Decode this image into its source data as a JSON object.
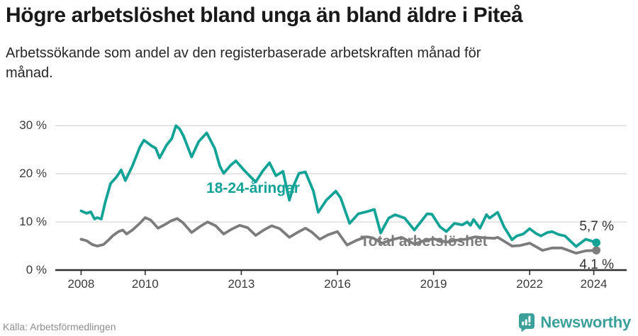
{
  "header": {
    "title": "Högre arbetslöshet bland unga än bland äldre i Piteå",
    "subtitle_line1": "Arbetssökande som andel av den registerbaserade arbetskraften månad för",
    "subtitle_line2": "månad."
  },
  "chart_data": {
    "type": "line",
    "title": "Högre arbetslöshet bland unga än bland äldre i Piteå",
    "xlabel": "",
    "ylabel": "",
    "unit": "%",
    "grid": "horizontal",
    "legend_position": "inline-labels",
    "ylim": [
      0,
      32
    ],
    "xlim": [
      2007.95,
      2024.2
    ],
    "y_ticks": [
      {
        "value": 0,
        "label": "0 %"
      },
      {
        "value": 10,
        "label": "10 %"
      },
      {
        "value": 20,
        "label": "20 %"
      },
      {
        "value": 30,
        "label": "30 %"
      }
    ],
    "x_ticks": [
      {
        "year": 2008,
        "label": "2008"
      },
      {
        "year": 2010,
        "label": "2010"
      },
      {
        "year": 2013,
        "label": "2013"
      },
      {
        "year": 2016,
        "label": "2016"
      },
      {
        "year": 2019,
        "label": "2019"
      },
      {
        "year": 2022,
        "label": "2022"
      },
      {
        "year": 2024,
        "label": "2024"
      }
    ],
    "series": [
      {
        "name": "18-24-åringar",
        "color": "#12a296",
        "end_label": "5,7 %",
        "end_value": 5.7,
        "points": [
          [
            2008.0,
            12.3
          ],
          [
            2008.17,
            11.8
          ],
          [
            2008.3,
            12.1
          ],
          [
            2008.42,
            10.6
          ],
          [
            2008.5,
            10.9
          ],
          [
            2008.63,
            10.6
          ],
          [
            2008.75,
            14.0
          ],
          [
            2008.92,
            18.0
          ],
          [
            2009.1,
            19.3
          ],
          [
            2009.25,
            20.8
          ],
          [
            2009.38,
            18.6
          ],
          [
            2009.6,
            21.6
          ],
          [
            2009.83,
            25.5
          ],
          [
            2009.96,
            27.0
          ],
          [
            2010.2,
            25.8
          ],
          [
            2010.33,
            25.3
          ],
          [
            2010.45,
            23.3
          ],
          [
            2010.67,
            26.0
          ],
          [
            2010.83,
            27.3
          ],
          [
            2010.96,
            30.0
          ],
          [
            2011.08,
            29.3
          ],
          [
            2011.2,
            27.8
          ],
          [
            2011.45,
            23.5
          ],
          [
            2011.67,
            26.7
          ],
          [
            2011.92,
            28.5
          ],
          [
            2012.17,
            25.3
          ],
          [
            2012.33,
            21.6
          ],
          [
            2012.45,
            20.1
          ],
          [
            2012.67,
            21.8
          ],
          [
            2012.83,
            22.7
          ],
          [
            2013.08,
            20.8
          ],
          [
            2013.3,
            19.3
          ],
          [
            2013.45,
            18.3
          ],
          [
            2013.67,
            20.6
          ],
          [
            2013.88,
            22.3
          ],
          [
            2014.08,
            19.6
          ],
          [
            2014.3,
            20.5
          ],
          [
            2014.5,
            14.5
          ],
          [
            2014.63,
            17.5
          ],
          [
            2014.8,
            20.1
          ],
          [
            2015.0,
            20.4
          ],
          [
            2015.25,
            16.4
          ],
          [
            2015.4,
            12.0
          ],
          [
            2015.65,
            14.5
          ],
          [
            2015.95,
            16.4
          ],
          [
            2016.1,
            15.0
          ],
          [
            2016.38,
            9.7
          ],
          [
            2016.65,
            11.7
          ],
          [
            2016.95,
            12.2
          ],
          [
            2017.15,
            12.6
          ],
          [
            2017.35,
            7.7
          ],
          [
            2017.6,
            10.8
          ],
          [
            2017.8,
            11.5
          ],
          [
            2018.1,
            10.8
          ],
          [
            2018.4,
            8.3
          ],
          [
            2018.8,
            11.7
          ],
          [
            2018.95,
            11.6
          ],
          [
            2019.2,
            9.0
          ],
          [
            2019.4,
            8.0
          ],
          [
            2019.65,
            9.7
          ],
          [
            2019.9,
            9.4
          ],
          [
            2020.05,
            10.0
          ],
          [
            2020.15,
            9.3
          ],
          [
            2020.25,
            10.5
          ],
          [
            2020.45,
            8.7
          ],
          [
            2020.65,
            11.5
          ],
          [
            2020.75,
            10.8
          ],
          [
            2021.0,
            12.0
          ],
          [
            2021.2,
            9.0
          ],
          [
            2021.45,
            6.3
          ],
          [
            2021.6,
            7.1
          ],
          [
            2021.8,
            7.5
          ],
          [
            2022.0,
            8.6
          ],
          [
            2022.2,
            7.6
          ],
          [
            2022.35,
            7.1
          ],
          [
            2022.55,
            7.8
          ],
          [
            2022.7,
            8.0
          ],
          [
            2022.9,
            7.4
          ],
          [
            2023.1,
            7.1
          ],
          [
            2023.45,
            4.9
          ],
          [
            2023.75,
            6.4
          ],
          [
            2023.9,
            6.1
          ],
          [
            2024.08,
            5.7
          ]
        ]
      },
      {
        "name": "Total arbetslöshet",
        "color": "#7c7c7c",
        "end_label": "4,1 %",
        "end_value": 4.1,
        "points": [
          [
            2008.0,
            6.4
          ],
          [
            2008.17,
            6.1
          ],
          [
            2008.35,
            5.3
          ],
          [
            2008.5,
            5.0
          ],
          [
            2008.7,
            5.3
          ],
          [
            2008.85,
            6.2
          ],
          [
            2009.0,
            7.2
          ],
          [
            2009.17,
            8.0
          ],
          [
            2009.3,
            8.3
          ],
          [
            2009.42,
            7.5
          ],
          [
            2009.6,
            8.3
          ],
          [
            2009.83,
            9.7
          ],
          [
            2010.0,
            10.9
          ],
          [
            2010.17,
            10.4
          ],
          [
            2010.4,
            8.7
          ],
          [
            2010.6,
            9.4
          ],
          [
            2010.8,
            10.2
          ],
          [
            2011.0,
            10.7
          ],
          [
            2011.17,
            9.9
          ],
          [
            2011.45,
            7.8
          ],
          [
            2011.7,
            9.0
          ],
          [
            2011.95,
            10.0
          ],
          [
            2012.2,
            9.2
          ],
          [
            2012.45,
            7.5
          ],
          [
            2012.7,
            8.5
          ],
          [
            2012.95,
            9.3
          ],
          [
            2013.2,
            8.8
          ],
          [
            2013.45,
            7.2
          ],
          [
            2013.7,
            8.3
          ],
          [
            2013.95,
            9.2
          ],
          [
            2014.2,
            8.6
          ],
          [
            2014.5,
            6.8
          ],
          [
            2014.75,
            7.8
          ],
          [
            2015.0,
            8.7
          ],
          [
            2015.2,
            7.9
          ],
          [
            2015.45,
            6.4
          ],
          [
            2015.7,
            7.3
          ],
          [
            2016.0,
            8.0
          ],
          [
            2016.3,
            5.2
          ],
          [
            2016.6,
            6.2
          ],
          [
            2016.9,
            6.9
          ],
          [
            2017.1,
            6.7
          ],
          [
            2017.4,
            5.6
          ],
          [
            2017.7,
            6.3
          ],
          [
            2018.0,
            6.8
          ],
          [
            2018.4,
            5.4
          ],
          [
            2018.7,
            6.1
          ],
          [
            2019.0,
            6.5
          ],
          [
            2019.4,
            5.8
          ],
          [
            2019.7,
            6.2
          ],
          [
            2020.0,
            6.4
          ],
          [
            2020.3,
            6.9
          ],
          [
            2020.6,
            6.7
          ],
          [
            2020.9,
            6.6
          ],
          [
            2021.0,
            6.8
          ],
          [
            2021.3,
            5.6
          ],
          [
            2021.45,
            5.0
          ],
          [
            2021.7,
            5.1
          ],
          [
            2022.0,
            5.6
          ],
          [
            2022.4,
            4.1
          ],
          [
            2022.7,
            4.6
          ],
          [
            2023.0,
            4.6
          ],
          [
            2023.45,
            3.5
          ],
          [
            2023.75,
            4.0
          ],
          [
            2024.08,
            4.1
          ]
        ]
      }
    ]
  },
  "footer": {
    "source": "Källa: Arbetsförmedlingen",
    "brand": "Newsworthy"
  },
  "colors": {
    "youth_line": "#12a296",
    "total_line": "#7c7c7c",
    "gridline": "#d9d9d9",
    "axis": "#2e2e2e",
    "brand_teal": "#3aa099"
  }
}
